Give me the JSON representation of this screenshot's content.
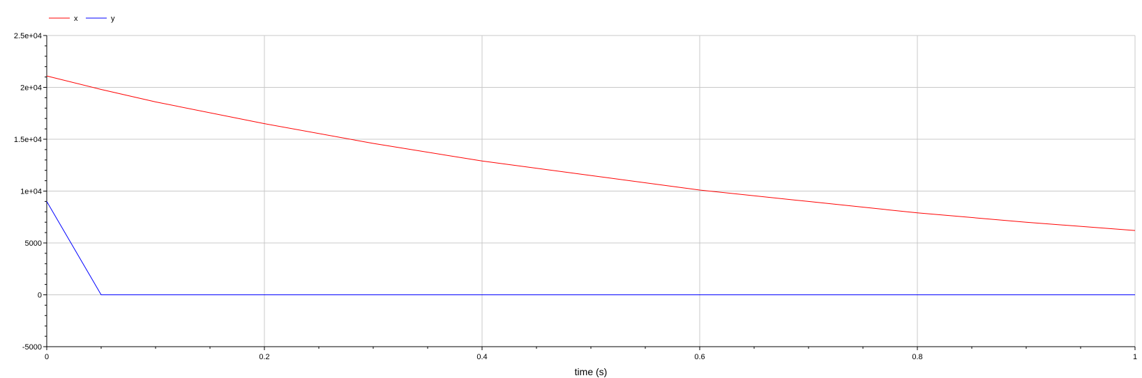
{
  "chart_data": {
    "type": "line",
    "title": "",
    "xlabel": "time (s)",
    "ylabel": "",
    "xlim": [
      0,
      1
    ],
    "ylim": [
      -5000,
      25000
    ],
    "x_ticks": [
      0,
      0.2,
      0.4,
      0.6,
      0.8,
      1
    ],
    "x_tick_labels": [
      "0",
      "0.2",
      "0.4",
      "0.6",
      "0.8",
      "1"
    ],
    "y_ticks": [
      -5000,
      0,
      5000,
      10000,
      15000,
      20000,
      25000
    ],
    "y_tick_labels": [
      "-5000",
      "0",
      "5000",
      "1e+04",
      "1.5e+04",
      "2e+04",
      "2.5e+04"
    ],
    "grid": true,
    "legend_position": "top-left",
    "series": [
      {
        "name": "x",
        "color": "#ff0000",
        "x": [
          0,
          0.05,
          0.1,
          0.2,
          0.3,
          0.4,
          0.5,
          0.6,
          0.7,
          0.8,
          0.9,
          1.0
        ],
        "y": [
          21100,
          19800,
          18600,
          16500,
          14600,
          12900,
          11500,
          10100,
          9000,
          7900,
          7000,
          6200
        ]
      },
      {
        "name": "y",
        "color": "#0000ff",
        "x": [
          0,
          0.05,
          0.1,
          0.2,
          0.4,
          0.6,
          0.8,
          1.0
        ],
        "y": [
          9000,
          0,
          0,
          0,
          0,
          0,
          0,
          0
        ]
      }
    ]
  }
}
